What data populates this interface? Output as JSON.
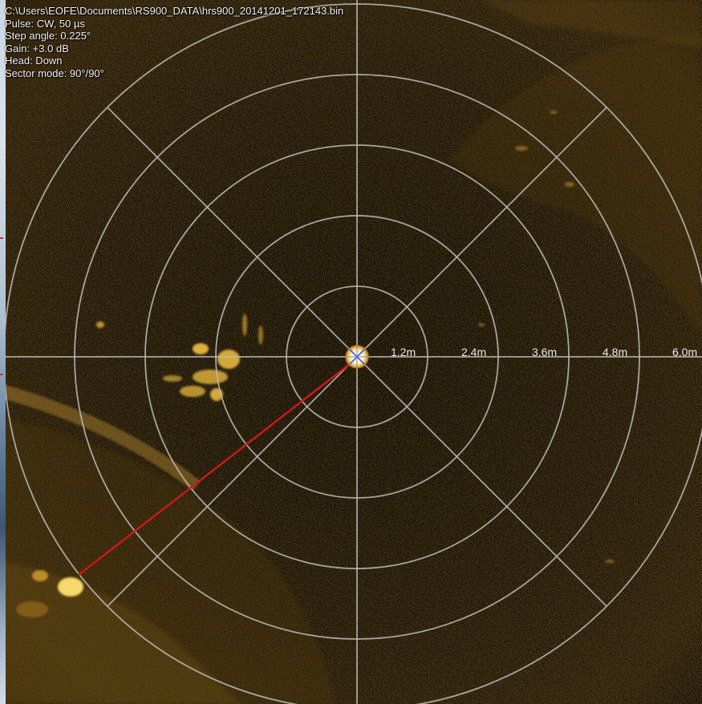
{
  "info": {
    "file_path": "C:\\Users\\EOFE\\Documents\\RS900_DATA\\hrs900_20141201_172143.bin",
    "pulse": "Pulse: CW, 50 µs",
    "step_angle": "Step angle: 0.225°",
    "gain": "Gain: +3.0 dB",
    "head": "Head: Down",
    "sector_mode": "Sector mode: 90°/90°"
  },
  "range_labels": [
    "1.2m",
    "2.4m",
    "3.6m",
    "4.8m",
    "6.0m"
  ],
  "colors": {
    "background": "#1a1206",
    "echo": "#e0a020",
    "grid": "#bcbcbc",
    "measure_line": "#d01818",
    "text": "#f2f2f2"
  },
  "icons": {
    "center": "transducer-center-icon"
  }
}
